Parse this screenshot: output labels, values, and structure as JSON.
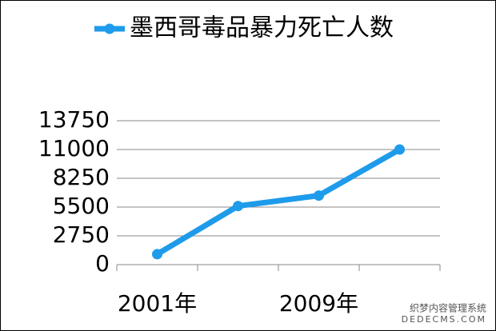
{
  "chart_data": {
    "type": "line",
    "categories": [
      "2001年",
      null,
      "2009年",
      null
    ],
    "series": [
      {
        "name": "墨西哥毒品暴力死亡人数",
        "color": "#1e9bea",
        "values": [
          1000,
          5600,
          6600,
          11000
        ]
      }
    ],
    "ylim": [
      0,
      13750
    ],
    "yticks": [
      0,
      2750,
      5500,
      8250,
      11000,
      13750
    ],
    "grid": true,
    "legend": "top"
  },
  "watermark": {
    "line1": "织梦内容管理系统",
    "line2": "DEDECMS.COM"
  }
}
